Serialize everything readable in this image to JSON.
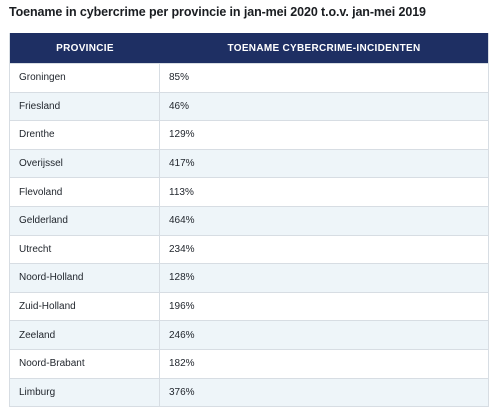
{
  "title": "Toename in cybercrime per provincie in jan-mei 2020 t.o.v. jan-mei 2019",
  "table": {
    "headers": [
      "PROVINCIE",
      "TOENAME CYBERCRIME-INCIDENTEN"
    ],
    "rows": [
      {
        "provincie": "Groningen",
        "toename": "85%"
      },
      {
        "provincie": "Friesland",
        "toename": "46%"
      },
      {
        "provincie": "Drenthe",
        "toename": "129%"
      },
      {
        "provincie": "Overijssel",
        "toename": "417%"
      },
      {
        "provincie": "Flevoland",
        "toename": "113%"
      },
      {
        "provincie": "Gelderland",
        "toename": "464%"
      },
      {
        "provincie": "Utrecht",
        "toename": "234%"
      },
      {
        "provincie": "Noord-Holland",
        "toename": "128%"
      },
      {
        "provincie": "Zuid-Holland",
        "toename": "196%"
      },
      {
        "provincie": "Zeeland",
        "toename": "246%"
      },
      {
        "provincie": "Noord-Brabant",
        "toename": "182%"
      },
      {
        "provincie": "Limburg",
        "toename": "376%"
      }
    ]
  },
  "colors": {
    "header_bg": "#1e2f63",
    "header_text": "#ffffff",
    "stripe": "#eef5f9",
    "border": "#d7dde3"
  }
}
